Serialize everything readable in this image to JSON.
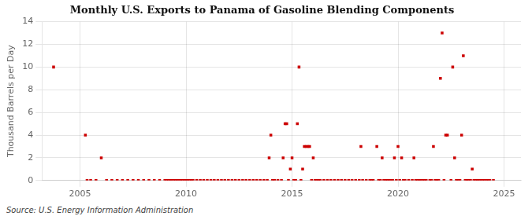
{
  "chart_data": {
    "type": "scatter",
    "title": "Monthly U.S. Exports to Panama of Gasoline Blending Components",
    "ylabel": "Thousand Barrels per Day",
    "annotations": [
      "Source: U.S. Energy Information Administration"
    ],
    "color": "#cc0000",
    "marker": "square",
    "grid": true,
    "xlim": [
      2003.2,
      2025.8
    ],
    "xticks": [
      2005,
      2010,
      2015,
      2020,
      2025
    ],
    "ylim": [
      0,
      14
    ],
    "yticks": [
      0,
      2,
      4,
      6,
      8,
      10,
      12,
      14
    ],
    "x": [
      2003.75,
      2005.25,
      2005.33,
      2005.5,
      2005.75,
      2006.0,
      2006.25,
      2006.5,
      2006.75,
      2007.0,
      2007.25,
      2007.5,
      2007.75,
      2008.0,
      2008.25,
      2008.5,
      2008.75,
      2009.0,
      2009.08,
      2009.17,
      2009.25,
      2009.33,
      2009.42,
      2009.5,
      2009.58,
      2009.67,
      2009.75,
      2009.83,
      2009.92,
      2010.0,
      2010.08,
      2010.17,
      2010.25,
      2010.33,
      2010.5,
      2010.67,
      2010.83,
      2011.0,
      2011.17,
      2011.33,
      2011.5,
      2011.67,
      2011.83,
      2012.0,
      2012.17,
      2012.33,
      2012.5,
      2012.67,
      2012.83,
      2013.0,
      2013.17,
      2013.33,
      2013.5,
      2013.67,
      2013.83,
      2013.92,
      2014.0,
      2014.08,
      2014.17,
      2014.33,
      2014.5,
      2014.58,
      2014.67,
      2014.75,
      2014.83,
      2014.92,
      2015.0,
      2015.08,
      2015.17,
      2015.25,
      2015.33,
      2015.42,
      2015.5,
      2015.58,
      2015.67,
      2015.75,
      2015.83,
      2015.92,
      2016.0,
      2016.08,
      2016.17,
      2016.25,
      2016.33,
      2016.5,
      2016.67,
      2016.83,
      2017.0,
      2017.17,
      2017.33,
      2017.5,
      2017.67,
      2017.83,
      2018.0,
      2018.17,
      2018.25,
      2018.33,
      2018.5,
      2018.67,
      2018.75,
      2018.83,
      2019.0,
      2019.08,
      2019.17,
      2019.25,
      2019.33,
      2019.42,
      2019.5,
      2019.58,
      2019.67,
      2019.75,
      2019.83,
      2019.92,
      2020.0,
      2020.08,
      2020.17,
      2020.25,
      2020.33,
      2020.5,
      2020.67,
      2020.75,
      2020.83,
      2020.92,
      2021.0,
      2021.08,
      2021.17,
      2021.25,
      2021.33,
      2021.5,
      2021.58,
      2021.67,
      2021.75,
      2021.83,
      2021.92,
      2022.0,
      2022.08,
      2022.17,
      2022.25,
      2022.33,
      2022.5,
      2022.58,
      2022.67,
      2022.75,
      2022.83,
      2022.92,
      2023.0,
      2023.08,
      2023.17,
      2023.25,
      2023.33,
      2023.42,
      2023.5,
      2023.58,
      2023.67,
      2023.75,
      2023.83,
      2023.92,
      2024.0,
      2024.08,
      2024.17,
      2024.25,
      2024.33,
      2024.5
    ],
    "values": [
      10,
      4,
      0,
      0,
      0,
      2,
      0,
      0,
      0,
      0,
      0,
      0,
      0,
      0,
      0,
      0,
      0,
      0,
      0,
      0,
      0,
      0,
      0,
      0,
      0,
      0,
      0,
      0,
      0,
      0,
      0,
      0,
      0,
      0,
      0,
      0,
      0,
      0,
      0,
      0,
      0,
      0,
      0,
      0,
      0,
      0,
      0,
      0,
      0,
      0,
      0,
      0,
      0,
      0,
      0,
      2,
      4,
      0,
      0,
      0,
      0,
      2,
      5,
      5,
      0,
      1,
      2,
      0,
      0,
      5,
      10,
      0,
      1,
      3,
      3,
      3,
      3,
      0,
      2,
      0,
      0,
      0,
      0,
      0,
      0,
      0,
      0,
      0,
      0,
      0,
      0,
      0,
      0,
      0,
      3,
      0,
      0,
      0,
      0,
      0,
      3,
      0,
      0,
      2,
      0,
      0,
      0,
      0,
      0,
      0,
      2,
      0,
      3,
      0,
      2,
      0,
      0,
      0,
      0,
      2,
      0,
      0,
      0,
      0,
      0,
      0,
      0,
      0,
      0,
      3,
      0,
      0,
      0,
      9,
      13,
      0,
      4,
      4,
      0,
      10,
      2,
      0,
      0,
      0,
      4,
      11,
      0,
      0,
      0,
      0,
      1,
      0,
      0,
      0,
      0,
      0,
      0,
      0,
      0,
      0,
      0,
      0
    ]
  }
}
